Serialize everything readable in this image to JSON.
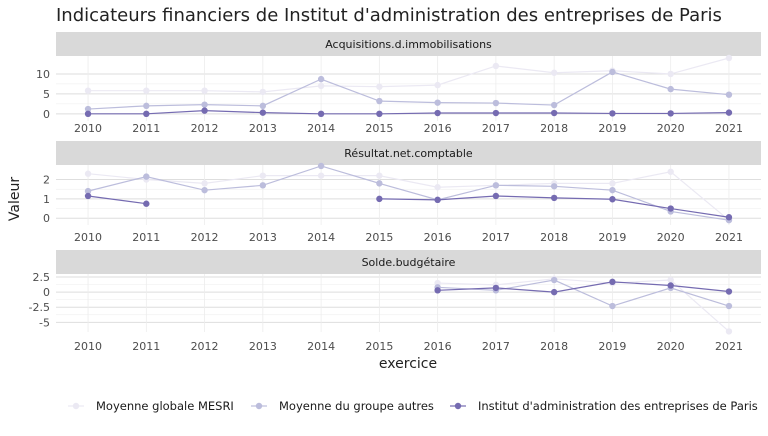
{
  "chart_data": {
    "type": "line",
    "title": "Indicateurs financiers de Institut d'administration des entreprises de Paris",
    "xlabel": "exercice",
    "ylabel": "Valeur",
    "x": [
      2010,
      2011,
      2012,
      2013,
      2014,
      2015,
      2016,
      2017,
      2018,
      2019,
      2020,
      2021
    ],
    "legend_position": "bottom",
    "legend": [
      {
        "name": "Moyenne globale MESRI",
        "color": "#ebe9f3"
      },
      {
        "name": "Moyenne du groupe autres",
        "color": "#bcbddc"
      },
      {
        "name": "Institut d'administration des entreprises de Paris",
        "color": "#756bb1"
      }
    ],
    "panels": [
      {
        "title": "Acquisitions.d.immobilisations",
        "ylim": [
          -1.8,
          14.5
        ],
        "yticks": [
          0,
          5,
          10
        ],
        "series": [
          {
            "name": "Moyenne globale MESRI",
            "values": [
              5.8,
              5.8,
              5.8,
              5.5,
              7.0,
              6.8,
              7.2,
              12.0,
              10.3,
              10.8,
              10.0,
              14.0
            ]
          },
          {
            "name": "Moyenne du groupe autres",
            "values": [
              1.2,
              2.0,
              2.3,
              2.0,
              8.7,
              3.2,
              2.8,
              2.7,
              2.2,
              10.5,
              6.2,
              4.8
            ]
          },
          {
            "name": "Institut d'administration des entreprises de Paris",
            "values": [
              0.0,
              0.0,
              0.8,
              0.3,
              0.0,
              0.0,
              0.2,
              0.2,
              0.2,
              0.1,
              0.1,
              0.3
            ]
          }
        ]
      },
      {
        "title": "Résultat.net.comptable",
        "ylim": [
          -0.35,
          2.75
        ],
        "yticks": [
          0,
          1,
          2
        ],
        "series": [
          {
            "name": "Moyenne globale MESRI",
            "values": [
              2.3,
              2.0,
              1.8,
              2.2,
              2.2,
              2.2,
              1.6,
              1.7,
              1.8,
              1.8,
              2.4,
              -0.1
            ]
          },
          {
            "name": "Moyenne du groupe autres",
            "values": [
              1.4,
              2.15,
              1.45,
              1.7,
              2.7,
              1.8,
              0.95,
              1.7,
              1.65,
              1.45,
              0.35,
              -0.1
            ]
          },
          {
            "name": "Institut d'administration des entreprises de Paris",
            "values": [
              1.15,
              0.75,
              null,
              null,
              null,
              1.0,
              0.95,
              1.15,
              1.05,
              0.98,
              0.5,
              0.05
            ]
          }
        ]
      },
      {
        "title": "Solde.budgétaire",
        "ylim": [
          -6.6,
          3.0
        ],
        "yticks": [
          2.5,
          0.0,
          -2.5,
          -5.0
        ],
        "series": [
          {
            "name": "Moyenne globale MESRI",
            "values": [
              null,
              null,
              null,
              null,
              null,
              null,
              1.5,
              1.2,
              2.2,
              1.5,
              2.0,
              -6.5
            ]
          },
          {
            "name": "Moyenne du groupe autres",
            "values": [
              null,
              null,
              null,
              null,
              null,
              null,
              0.8,
              0.3,
              2.0,
              -2.3,
              0.7,
              -2.3
            ]
          },
          {
            "name": "Institut d'administration des entreprises de Paris",
            "values": [
              null,
              null,
              null,
              null,
              null,
              null,
              0.3,
              0.7,
              0.0,
              1.7,
              1.1,
              0.1
            ]
          }
        ]
      }
    ]
  }
}
